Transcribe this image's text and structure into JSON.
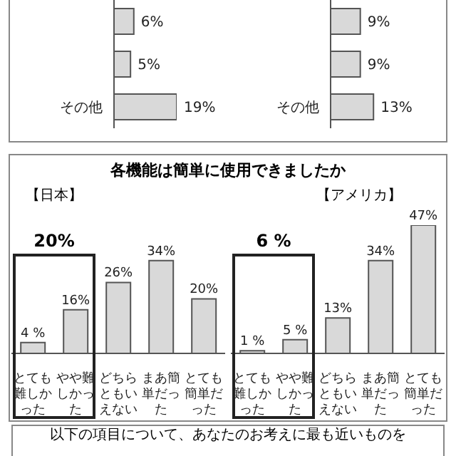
{
  "chart_data": [
    {
      "type": "bar",
      "orientation": "horizontal",
      "categories": [
        null,
        null,
        "その他"
      ],
      "values": [
        6,
        5,
        19
      ],
      "value_labels": [
        "6%",
        "5%",
        "19%"
      ],
      "color": "#d9d9d9"
    },
    {
      "type": "bar",
      "orientation": "horizontal",
      "categories": [
        null,
        null,
        "その他"
      ],
      "values": [
        9,
        9,
        13
      ],
      "value_labels": [
        "9%",
        "9%",
        "13%"
      ],
      "color": "#d9d9d9"
    },
    {
      "type": "bar",
      "title": "各機能は簡単に使用できましたか",
      "subtitle": "【日本】",
      "categories": [
        "とても難しかった",
        "やや難しかった",
        "どちらともいえない",
        "まあ簡単だった",
        "とても簡単だった"
      ],
      "values": [
        4,
        16,
        26,
        34,
        20
      ],
      "value_labels": [
        "4 %",
        "16%",
        "26%",
        "34%",
        "20%"
      ],
      "color": "#d9d9d9",
      "annotations": [
        "20%"
      ]
    },
    {
      "type": "bar",
      "subtitle": "【アメリカ】",
      "categories": [
        "とても難しかった",
        "やや難しかった",
        "どちらともいえない",
        "まあ簡単だった",
        "とても簡単だった"
      ],
      "values": [
        1,
        5,
        13,
        34,
        47
      ],
      "value_labels": [
        "1 %",
        "5 %",
        "13%",
        "34%",
        "47%"
      ],
      "color": "#d9d9d9",
      "annotations": [
        "6 %"
      ]
    },
    {
      "type": "other",
      "title": "以下の項目について、あなたのお考えに最も近いものを"
    }
  ]
}
